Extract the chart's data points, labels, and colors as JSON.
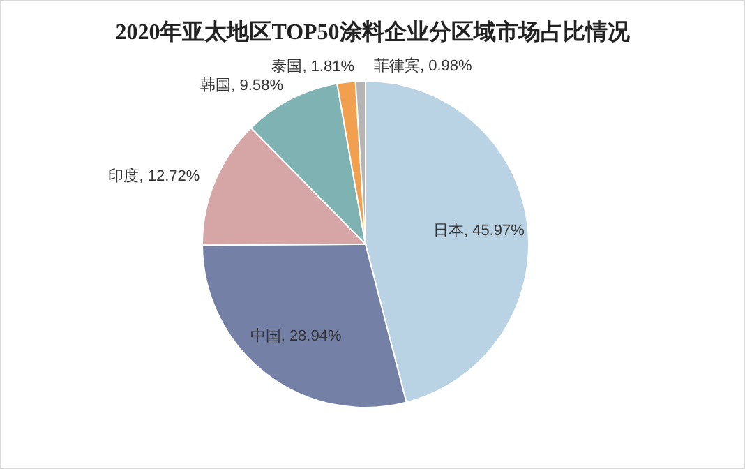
{
  "chart_data": {
    "type": "pie",
    "title": "2020年亚太地区TOP50涂料企业分区域市场占比情况",
    "categories": [
      "日本",
      "中国",
      "印度",
      "韩国",
      "泰国",
      "菲律宾"
    ],
    "values": [
      45.97,
      28.94,
      12.72,
      9.58,
      1.81,
      0.98
    ],
    "colors": [
      "#b9d3e5",
      "#7580a6",
      "#d5a6a5",
      "#7fb2b2",
      "#f0a04e",
      "#b4b4b4"
    ],
    "value_labels": [
      ", 45.97%",
      ", 28.94%",
      ", 12.72%",
      ", 9.58%",
      ", 1.81%",
      ", 0.98%"
    ]
  }
}
